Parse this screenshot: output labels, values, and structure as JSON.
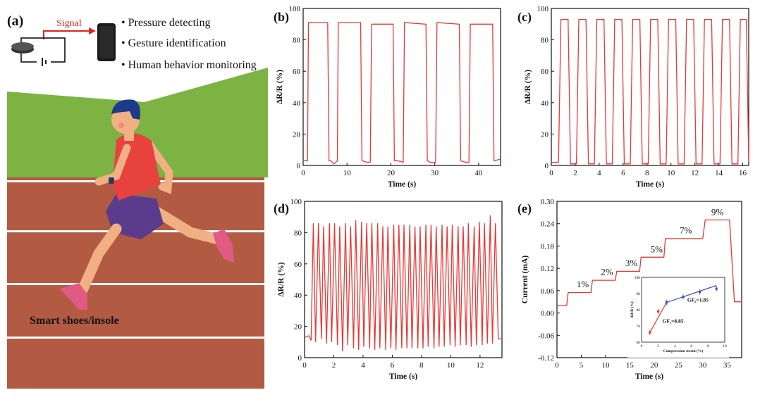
{
  "panel_a": {
    "label": "(a)",
    "signal_label": "Signal",
    "bullets": [
      "Pressure detecting",
      "Gesture identification",
      "Human behavior monitoring"
    ],
    "caption": "Smart shoes/insole",
    "colors": {
      "signal": "#d7281f",
      "sky": "#ffffff",
      "grass": "#7cb342",
      "track": "#b35a43",
      "lane": "#ffffff"
    }
  },
  "chart_data": [
    {
      "panel": "(b)",
      "type": "line",
      "ylabel": "ΔR/R (%)",
      "xlabel": "Time (s)",
      "xlim": [
        0,
        45
      ],
      "ylim": [
        0,
        100
      ],
      "xticks": [
        0,
        10,
        20,
        30,
        40
      ],
      "yticks": [
        0,
        20,
        40,
        60,
        80,
        100
      ],
      "color": "#e53935",
      "x": [
        0,
        1,
        1.2,
        5.6,
        5.9,
        6.3,
        7,
        7.8,
        8,
        13.1,
        13.4,
        14.5,
        15.3,
        15.6,
        20.5,
        20.8,
        21.5,
        22.8,
        23.1,
        28,
        28.3,
        29,
        30.2,
        30.5,
        35.6,
        35.9,
        37,
        37.8,
        38.1,
        43.2,
        43.5,
        45
      ],
      "y": [
        3,
        3,
        91,
        91,
        3,
        3,
        1,
        3,
        91,
        91,
        3,
        2,
        2,
        90,
        90,
        3,
        3,
        2,
        91,
        90,
        3,
        2,
        2,
        91,
        90,
        3,
        2,
        2,
        90,
        90,
        3,
        4
      ]
    },
    {
      "panel": "(c)",
      "type": "line",
      "ylabel": "ΔR/R (%)",
      "xlabel": "Time (s)",
      "xlim": [
        0,
        16.5
      ],
      "ylim": [
        0,
        100
      ],
      "xticks": [
        0,
        2,
        4,
        6,
        8,
        10,
        12,
        14,
        16
      ],
      "yticks": [
        0,
        20,
        40,
        60,
        80,
        100
      ],
      "color": "#e53935",
      "x": [
        0,
        0.6,
        0.8,
        1.4,
        1.6,
        2.1,
        2.3,
        2.9,
        3.1,
        3.6,
        3.8,
        4.4,
        4.6,
        5.1,
        5.3,
        5.9,
        6.1,
        6.6,
        6.8,
        7.4,
        7.6,
        8.1,
        8.3,
        8.9,
        9.1,
        9.6,
        9.8,
        10.4,
        10.6,
        11.1,
        11.3,
        11.9,
        12.1,
        12.6,
        12.8,
        13.4,
        13.6,
        14.1,
        14.3,
        14.9,
        15.1,
        15.6,
        15.8,
        16.3,
        16.5
      ],
      "y": [
        2,
        2,
        93,
        93,
        1,
        1,
        93,
        93,
        1,
        1,
        93,
        93,
        1,
        1,
        93,
        93,
        1,
        1,
        93,
        93,
        1,
        1,
        93,
        93,
        1,
        1,
        93,
        93,
        1,
        1,
        93,
        93,
        1,
        1,
        93,
        93,
        1,
        1,
        93,
        93,
        1,
        1,
        93,
        93,
        2
      ]
    },
    {
      "panel": "(d)",
      "type": "line",
      "ylabel": "ΔR/R (%)",
      "xlabel": "Time (s)",
      "xlim": [
        0,
        13.5
      ],
      "ylim": [
        0,
        100
      ],
      "xticks": [
        0,
        2,
        4,
        6,
        8,
        10,
        12
      ],
      "yticks": [
        0,
        20,
        40,
        60,
        80,
        100
      ],
      "color": "#e53935",
      "x": [
        0,
        0.3,
        0.45,
        0.6,
        0.75,
        0.95,
        1.15,
        1.3,
        1.5,
        1.7,
        1.85,
        2.05,
        2.25,
        2.4,
        2.6,
        2.8,
        2.95,
        3.15,
        3.35,
        3.5,
        3.7,
        3.9,
        4.05,
        4.25,
        4.45,
        4.6,
        4.8,
        5.0,
        5.15,
        5.35,
        5.55,
        5.7,
        5.9,
        6.1,
        6.25,
        6.45,
        6.65,
        6.8,
        7.0,
        7.2,
        7.35,
        7.55,
        7.75,
        7.9,
        8.1,
        8.3,
        8.45,
        8.65,
        8.85,
        9.0,
        9.2,
        9.4,
        9.55,
        9.75,
        9.95,
        10.1,
        10.3,
        10.5,
        10.65,
        10.85,
        11.05,
        11.2,
        11.4,
        11.6,
        11.75,
        11.95,
        12.15,
        12.3,
        12.5,
        12.7,
        12.85,
        13.05,
        13.25,
        13.45
      ],
      "y": [
        13,
        14,
        11,
        86,
        10,
        86,
        12,
        84,
        9,
        86,
        10,
        86,
        8,
        84,
        4,
        86,
        8,
        84,
        6,
        88,
        5,
        87,
        7,
        86,
        6,
        86,
        5,
        86,
        6,
        84,
        5,
        84,
        6,
        85,
        5,
        85,
        6,
        85,
        6,
        85,
        6,
        84,
        6,
        84,
        6,
        85,
        7,
        85,
        6,
        84,
        7,
        85,
        7,
        84,
        8,
        85,
        7,
        84,
        8,
        84,
        8,
        86,
        7,
        84,
        8,
        87,
        8,
        86,
        9,
        91,
        9,
        86,
        12,
        12
      ]
    },
    {
      "panel": "(e)",
      "type": "line",
      "ylabel": "Current (mA)",
      "xlabel": "Time (s)",
      "xlim": [
        0,
        38
      ],
      "ylim": [
        -0.12,
        0.3
      ],
      "xticks": [
        0,
        5,
        10,
        15,
        20,
        25,
        30,
        35
      ],
      "yticks": [
        -0.12,
        -0.06,
        0.0,
        0.06,
        0.12,
        0.18,
        0.24,
        0.3
      ],
      "ytick_labels": [
        "-0.12",
        "-0.06",
        "0.00",
        "0.06",
        "0.12",
        "0.18",
        "0.24",
        "0.30"
      ],
      "color": "#e53935",
      "x": [
        0,
        2,
        2.3,
        7,
        7.3,
        12,
        12.3,
        17,
        17.3,
        22,
        22.3,
        30,
        30.5,
        35.5,
        36.5,
        38
      ],
      "y": [
        0.02,
        0.02,
        0.055,
        0.055,
        0.088,
        0.088,
        0.112,
        0.112,
        0.15,
        0.15,
        0.2,
        0.2,
        0.25,
        0.25,
        0.03,
        0.03
      ],
      "annotations": [
        {
          "text": "1%",
          "x": 5.3,
          "y": 0.062
        },
        {
          "text": "2%",
          "x": 10.3,
          "y": 0.095
        },
        {
          "text": "3%",
          "x": 15.3,
          "y": 0.118
        },
        {
          "text": "5%",
          "x": 20.5,
          "y": 0.155
        },
        {
          "text": "7%",
          "x": 26.5,
          "y": 0.206
        },
        {
          "text": "9%",
          "x": 33,
          "y": 0.256
        }
      ],
      "inset": {
        "type": "scatter",
        "ylabel": "ΔR/R (%)",
        "xlabel": "Compression strain (%)",
        "xlim": [
          0,
          10
        ],
        "ylim": [
          60,
          100
        ],
        "xticks": [
          0,
          2,
          4,
          6,
          8,
          10
        ],
        "yticks": [
          60,
          70,
          80,
          90,
          100
        ],
        "points": [
          {
            "x": 1,
            "y": 66,
            "series": "low"
          },
          {
            "x": 2,
            "y": 79,
            "series": "low"
          },
          {
            "x": 3,
            "y": 84.5,
            "series": "high"
          },
          {
            "x": 5,
            "y": 88,
            "series": "high"
          },
          {
            "x": 7,
            "y": 91,
            "series": "high"
          },
          {
            "x": 9,
            "y": 93,
            "series": "high"
          }
        ],
        "fit_low": {
          "x": [
            1,
            3
          ],
          "y": [
            66,
            84.5
          ],
          "color": "#e53935"
        },
        "fit_high": {
          "x": [
            3,
            9
          ],
          "y": [
            84.5,
            95
          ],
          "color": "#3f51b5"
        },
        "labels": [
          {
            "text": "GF₁=8.85",
            "x": 2.5,
            "y": 72
          },
          {
            "text": "GF₂=1.85",
            "x": 5.5,
            "y": 85
          }
        ]
      }
    }
  ]
}
